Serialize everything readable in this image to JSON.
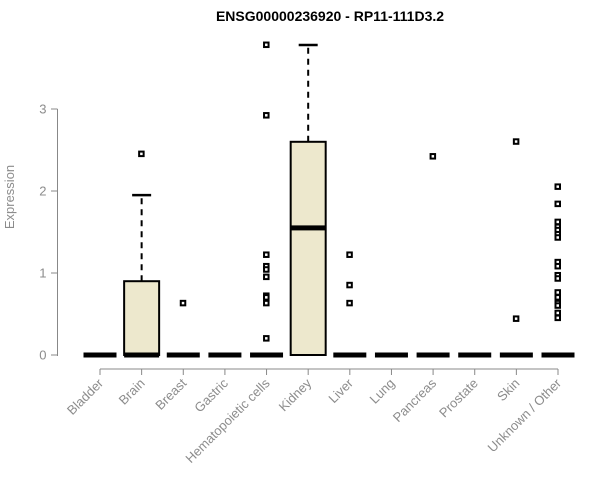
{
  "title": "ENSG00000236920 - RP11-111D3.2",
  "colors": {
    "box_fill": "#ede8cd",
    "box_stroke": "#000000",
    "median": "#000000",
    "whisker": "#000000",
    "outlier": "#000000",
    "axis_line": "#888888",
    "axis_text": "#8c8c8c",
    "background": "#ffffff"
  },
  "chart_data": {
    "type": "boxplot",
    "title": "ENSG00000236920 - RP11-111D3.2",
    "xlabel": "",
    "ylabel": "Expression",
    "ylim": [
      0,
      3.85
    ],
    "yticks": [
      0,
      1,
      2,
      3
    ],
    "grid": false,
    "legend": "none",
    "categories": [
      "Bladder",
      "Brain",
      "Breast",
      "Gastric",
      "Hematopoietic cells",
      "Kidney",
      "Liver",
      "Lung",
      "Pancreas",
      "Prostate",
      "Skin",
      "Unknown / Other"
    ],
    "series": [
      {
        "category": "Bladder",
        "q1": 0,
        "median": 0,
        "q3": 0,
        "whisker_low": 0,
        "whisker_high": 0,
        "outliers": []
      },
      {
        "category": "Brain",
        "q1": 0,
        "median": 0,
        "q3": 0.9,
        "whisker_low": 0,
        "whisker_high": 1.95,
        "outliers": [
          2.45
        ]
      },
      {
        "category": "Breast",
        "q1": 0,
        "median": 0,
        "q3": 0,
        "whisker_low": 0,
        "whisker_high": 0,
        "outliers": [
          0.63
        ]
      },
      {
        "category": "Gastric",
        "q1": 0,
        "median": 0,
        "q3": 0,
        "whisker_low": 0,
        "whisker_high": 0,
        "outliers": []
      },
      {
        "category": "Hematopoietic cells",
        "q1": 0,
        "median": 0,
        "q3": 0,
        "whisker_low": 0,
        "whisker_high": 0,
        "outliers": [
          3.78,
          2.92,
          1.22,
          1.08,
          1.04,
          0.95,
          0.72,
          0.7,
          0.63,
          0.2
        ]
      },
      {
        "category": "Kidney",
        "q1": 0,
        "median": 1.55,
        "q3": 2.6,
        "whisker_low": 0,
        "whisker_high": 3.78,
        "outliers": []
      },
      {
        "category": "Liver",
        "q1": 0,
        "median": 0,
        "q3": 0,
        "whisker_low": 0,
        "whisker_high": 0,
        "outliers": [
          1.22,
          0.85,
          0.63
        ]
      },
      {
        "category": "Lung",
        "q1": 0,
        "median": 0,
        "q3": 0,
        "whisker_low": 0,
        "whisker_high": 0,
        "outliers": []
      },
      {
        "category": "Pancreas",
        "q1": 0,
        "median": 0,
        "q3": 0,
        "whisker_low": 0,
        "whisker_high": 0,
        "outliers": [
          2.42
        ]
      },
      {
        "category": "Prostate",
        "q1": 0,
        "median": 0,
        "q3": 0,
        "whisker_low": 0,
        "whisker_high": 0,
        "outliers": []
      },
      {
        "category": "Skin",
        "q1": 0,
        "median": 0,
        "q3": 0,
        "whisker_low": 0,
        "whisker_high": 0,
        "outliers": [
          2.6,
          0.44
        ]
      },
      {
        "category": "Unknown / Other",
        "q1": 0,
        "median": 0,
        "q3": 0,
        "whisker_low": 0,
        "whisker_high": 0,
        "outliers": [
          2.05,
          1.84,
          1.62,
          1.56,
          1.52,
          1.47,
          1.43,
          1.13,
          1.08,
          0.97,
          0.93,
          0.76,
          0.7,
          0.63,
          0.6,
          0.51,
          0.45
        ]
      }
    ]
  }
}
